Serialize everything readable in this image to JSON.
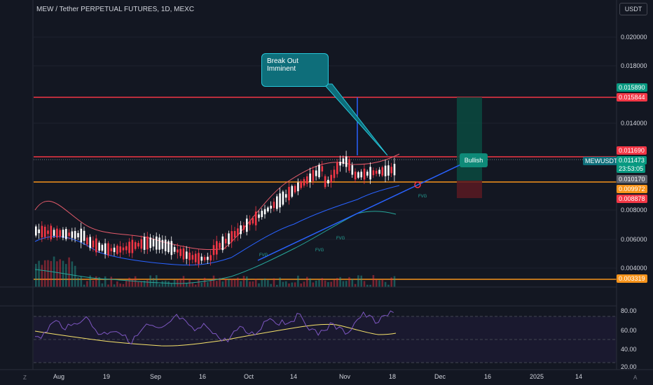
{
  "header": {
    "title": "MEW / Tether PERPETUAL FUTURES, 1D, MEXC",
    "currency": "USDT"
  },
  "price_axis": {
    "labels": [
      "0.020000",
      "0.018000",
      "0.014000",
      "0.008000",
      "0.006000",
      "0.004000"
    ]
  },
  "price_tags": [
    {
      "text": "0.015890",
      "color": "#089981"
    },
    {
      "text": "0.015844",
      "color": "#f23645"
    },
    {
      "text": "0.011690",
      "color": "#f23645"
    },
    {
      "text": "0.011473",
      "color": "#089981"
    },
    {
      "text": "23:53:05",
      "color": "#089981"
    },
    {
      "text": "0.010170",
      "color": "#5d606b"
    },
    {
      "text": "0.009972",
      "color": "#f7931a"
    },
    {
      "text": "0.008878",
      "color": "#f23645"
    },
    {
      "text": "0.003319",
      "color": "#f7931a"
    }
  ],
  "symbol_tag": "MEWUSDT.P",
  "rsi_axis": {
    "labels": [
      "80.00",
      "60.00",
      "40.00",
      "20.00"
    ]
  },
  "time_axis": {
    "labels": [
      "Aug",
      "19",
      "Sep",
      "16",
      "Oct",
      "14",
      "Nov",
      "18",
      "Dec",
      "16",
      "2025",
      "14"
    ]
  },
  "annotations": {
    "callout": "Break Out Imminent",
    "bullish": "Bullish",
    "fvg": "FVG"
  },
  "footer": {
    "left": "Z",
    "right": "A"
  },
  "colors": {
    "background": "#131722",
    "up": "#ffffff",
    "down": "#f23645",
    "resistance": "#f23645",
    "support": "#f7931a",
    "trendline": "#2962ff",
    "rsi": "#7e57c2",
    "rsi_ma": "#f7e36b"
  }
}
